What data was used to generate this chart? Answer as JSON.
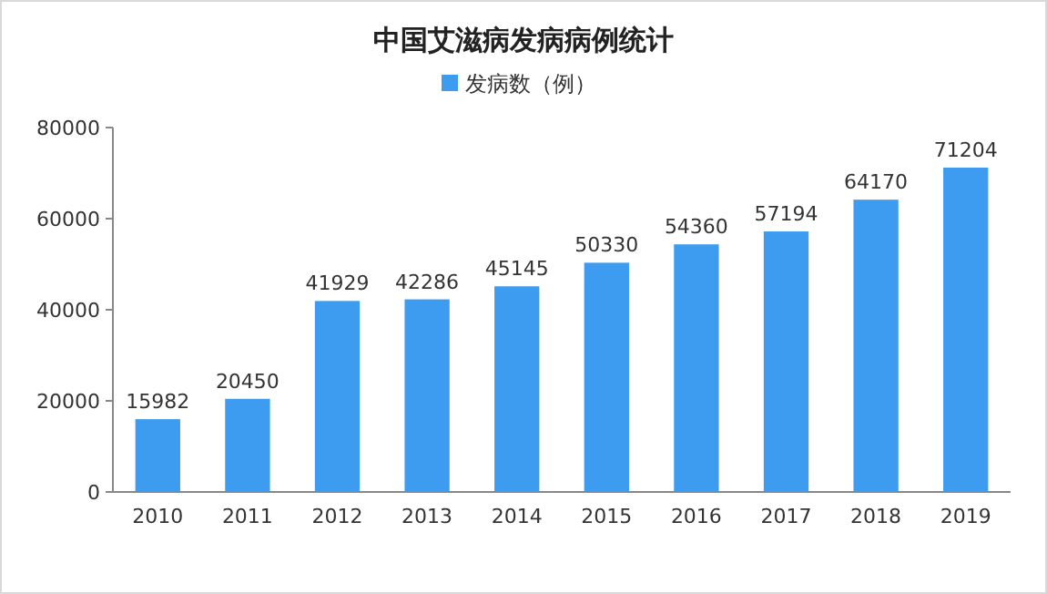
{
  "chart_data": {
    "type": "bar",
    "title": "中国艾滋病发病病例统计",
    "categories": [
      "2010",
      "2011",
      "2012",
      "2013",
      "2014",
      "2015",
      "2016",
      "2017",
      "2018",
      "2019"
    ],
    "series": [
      {
        "name": "发病数（例）",
        "color": "#3d9cf0",
        "values": [
          15982,
          20450,
          41929,
          42286,
          45145,
          50330,
          54360,
          57194,
          64170,
          71204
        ]
      }
    ],
    "ylim": [
      0,
      80000
    ],
    "yticks": [
      0,
      20000,
      40000,
      60000,
      80000
    ],
    "data_labels": true,
    "legend": "top"
  }
}
